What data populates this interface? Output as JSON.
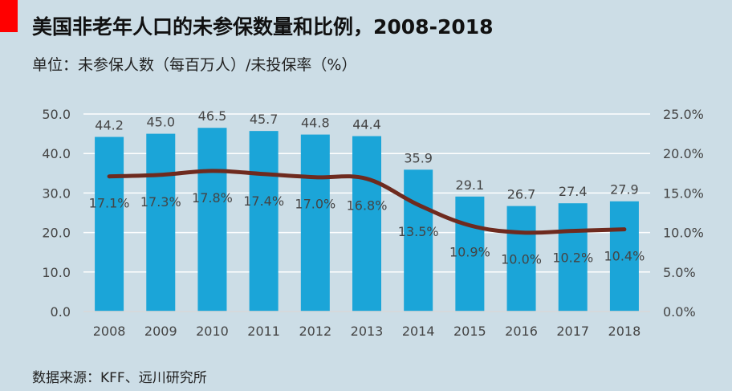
{
  "header": {
    "title": "美国非老年人口的未参保数量和比例，2008-2018",
    "subtitle": "单位：未参保人数（每百万人）/未投保率（%）"
  },
  "footer": {
    "source": "数据来源：KFF、远川研究所"
  },
  "colors": {
    "bar": "#1ba5d8",
    "line": "#6e2a1e",
    "grid": "#ffffff",
    "red_mark": "#ff0000"
  },
  "chart_data": {
    "type": "bar",
    "title": "美国非老年人口的未参保数量和比例，2008-2018",
    "categories": [
      "2008",
      "2009",
      "2010",
      "2011",
      "2012",
      "2013",
      "2014",
      "2015",
      "2016",
      "2017",
      "2018"
    ],
    "series": [
      {
        "name": "未参保人数",
        "type": "bar",
        "axis": "left",
        "values": [
          44.2,
          45.0,
          46.5,
          45.7,
          44.8,
          44.4,
          35.9,
          29.1,
          26.7,
          27.4,
          27.9
        ],
        "labels": [
          "44.2",
          "45.0",
          "46.5",
          "45.7",
          "44.8",
          "44.4",
          "35.9",
          "29.1",
          "26.7",
          "27.4",
          "27.9"
        ]
      },
      {
        "name": "未投保率",
        "type": "line",
        "axis": "right",
        "values": [
          17.1,
          17.3,
          17.8,
          17.4,
          17.0,
          16.8,
          13.5,
          10.9,
          10.0,
          10.2,
          10.4
        ],
        "labels": [
          "17.1%",
          "17.3%",
          "17.8%",
          "17.4%",
          "17.0%",
          "16.8%",
          "13.5%",
          "10.9%",
          "10.0%",
          "10.2%",
          "10.4%"
        ]
      }
    ],
    "ylim_left": [
      0,
      50
    ],
    "ylim_right": [
      0,
      25
    ],
    "yticks_left": [
      "0.0",
      "10.0",
      "20.0",
      "30.0",
      "40.0",
      "50.0"
    ],
    "yticks_right": [
      "0.0%",
      "5.0%",
      "10.0%",
      "15.0%",
      "20.0%",
      "25.0%"
    ],
    "xlabel": "",
    "ylabel": "",
    "grid": true
  }
}
